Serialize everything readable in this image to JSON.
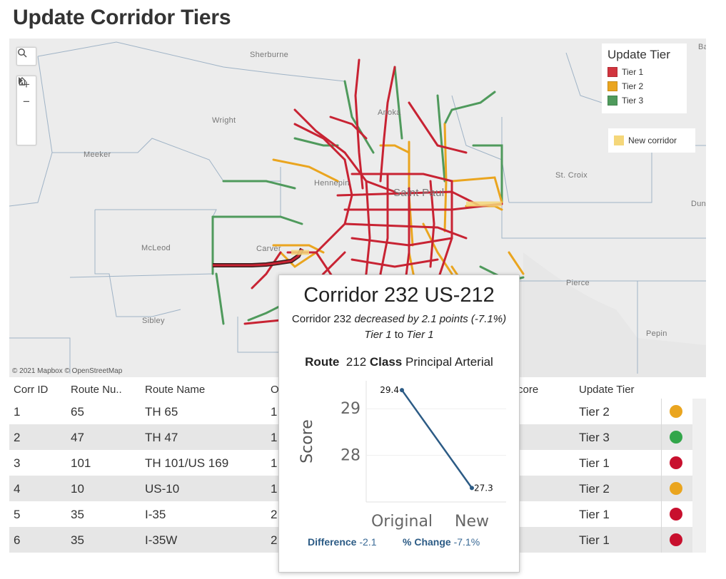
{
  "page": {
    "title": "Update Corridor Tiers"
  },
  "map": {
    "attribution": "© 2021 Mapbox  © OpenStreetMap",
    "places": [
      {
        "name": "Sherburne"
      },
      {
        "name": "Wright"
      },
      {
        "name": "Anoka"
      },
      {
        "name": "Meeker"
      },
      {
        "name": "Hennepin"
      },
      {
        "name": "Saint Paul"
      },
      {
        "name": "St. Croix"
      },
      {
        "name": "McLeod"
      },
      {
        "name": "Carver"
      },
      {
        "name": "Pierce"
      },
      {
        "name": "Sibley"
      },
      {
        "name": "Pepin"
      },
      {
        "name": "Dun"
      },
      {
        "name": "Ba"
      }
    ],
    "controls": {
      "search": "search-icon",
      "zoom_in": "+",
      "zoom_out": "−",
      "home": "home-icon",
      "play": "play-icon"
    },
    "legend": {
      "title": "Update Tier",
      "items": [
        {
          "label": "Tier 1",
          "color": "#d1343e"
        },
        {
          "label": "Tier 2",
          "color": "#eaa51f"
        },
        {
          "label": "Tier 3",
          "color": "#4f9a5c"
        }
      ]
    },
    "legend2": {
      "label": "New corridor",
      "color": "#f5d77a"
    }
  },
  "table": {
    "headers": [
      "Corr ID",
      "Route Nu..",
      "Route Name",
      "O",
      "core",
      "Update Tier"
    ],
    "rows": [
      {
        "id": "1",
        "route": "65",
        "name": "TH 65",
        "o": "1",
        "tier": "Tier 2",
        "color": "#eaa51f"
      },
      {
        "id": "2",
        "route": "47",
        "name": "TH 47",
        "o": "1",
        "tier": "Tier 3",
        "color": "#32a64a"
      },
      {
        "id": "3",
        "route": "101",
        "name": "TH 101/US 169",
        "o": "1",
        "tier": "Tier 1",
        "color": "#c8102e"
      },
      {
        "id": "4",
        "route": "10",
        "name": "US-10",
        "o": "1",
        "tier": "Tier 2",
        "color": "#eaa51f"
      },
      {
        "id": "5",
        "route": "35",
        "name": "I-35",
        "o": "2",
        "tier": "Tier 1",
        "color": "#c8102e"
      },
      {
        "id": "6",
        "route": "35",
        "name": "I-35W",
        "o": "2",
        "tier": "Tier 1",
        "color": "#c8102e"
      }
    ]
  },
  "tooltip": {
    "title": "Corridor 232 US-212",
    "sub_prefix": "Corridor 232",
    "sub_mid": "decreased by",
    "sub_points": "2.1 points (-7.1%)",
    "sub_from": "Tier 1",
    "sub_to_word": "to",
    "sub_to": "Tier 1",
    "route_label": "Route",
    "route_value": "212",
    "class_label": "Class",
    "class_value": "Principal Arterial",
    "diff_label": "Difference",
    "diff_value": "-2.1",
    "pct_label": "% Change",
    "pct_value": "-7.1%"
  },
  "chart_data": {
    "type": "line",
    "categories": [
      "Original",
      "New"
    ],
    "values": [
      29.4,
      27.3
    ],
    "data_labels": [
      "29.4",
      "27.3"
    ],
    "ylabel": "Score",
    "yticks": [
      "29",
      "28"
    ],
    "ylim": [
      27.0,
      29.6
    ],
    "color": "#2c5b85"
  }
}
